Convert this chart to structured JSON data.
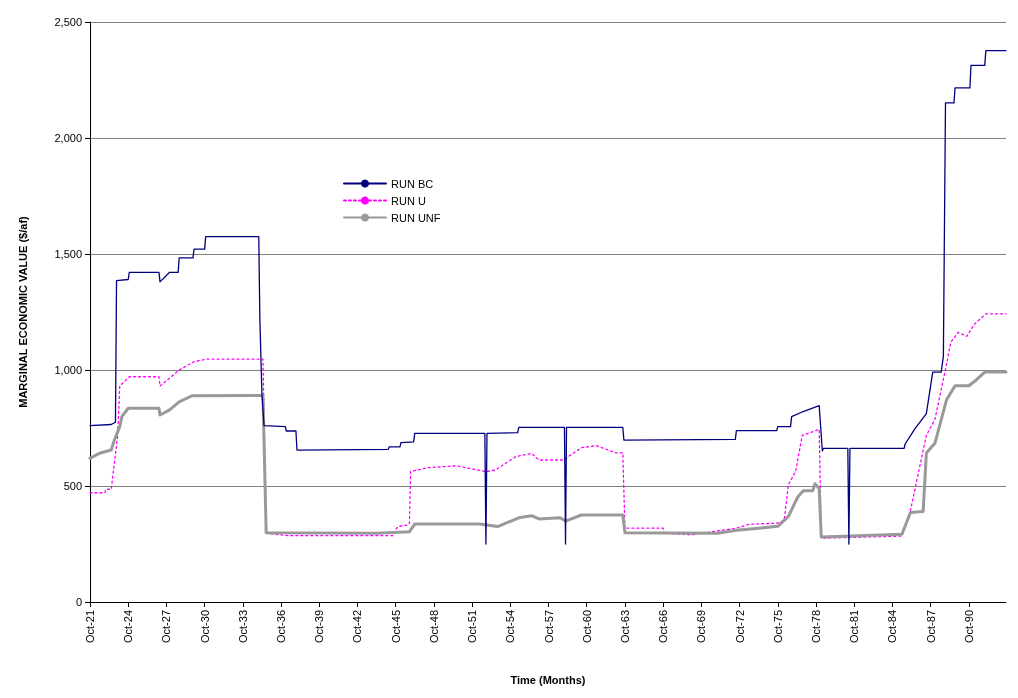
{
  "chart_data": {
    "type": "line",
    "xlabel": "Time (Months)",
    "ylabel": "MARGINAL ECONOMIC VALUE ($/af)",
    "xlim": [
      "1921-10",
      "1993-09"
    ],
    "xticks": [
      {
        "value": "1921-10",
        "label": "Oct-21"
      },
      {
        "value": "1924-10",
        "label": "Oct-24"
      },
      {
        "value": "1927-10",
        "label": "Oct-27"
      },
      {
        "value": "1930-10",
        "label": "Oct-30"
      },
      {
        "value": "1933-10",
        "label": "Oct-33"
      },
      {
        "value": "1936-10",
        "label": "Oct-36"
      },
      {
        "value": "1939-10",
        "label": "Oct-39"
      },
      {
        "value": "1942-10",
        "label": "Oct-42"
      },
      {
        "value": "1945-10",
        "label": "Oct-45"
      },
      {
        "value": "1948-10",
        "label": "Oct-48"
      },
      {
        "value": "1951-10",
        "label": "Oct-51"
      },
      {
        "value": "1954-10",
        "label": "Oct-54"
      },
      {
        "value": "1957-10",
        "label": "Oct-57"
      },
      {
        "value": "1960-10",
        "label": "Oct-60"
      },
      {
        "value": "1963-10",
        "label": "Oct-63"
      },
      {
        "value": "1966-10",
        "label": "Oct-66"
      },
      {
        "value": "1969-10",
        "label": "Oct-69"
      },
      {
        "value": "1972-10",
        "label": "Oct-72"
      },
      {
        "value": "1975-10",
        "label": "Oct-75"
      },
      {
        "value": "1978-10",
        "label": "Oct-78"
      },
      {
        "value": "1981-10",
        "label": "Oct-81"
      },
      {
        "value": "1984-10",
        "label": "Oct-84"
      },
      {
        "value": "1987-10",
        "label": "Oct-87"
      },
      {
        "value": "1990-10",
        "label": "Oct-90"
      }
    ],
    "ylim": [
      0,
      2500
    ],
    "yticks": [
      0,
      500,
      {
        "value": 1000,
        "label": "1,000"
      },
      {
        "value": 1500,
        "label": "1,500"
      },
      {
        "value": 2000,
        "label": "2,000"
      },
      {
        "value": 2500,
        "label": "2,500"
      }
    ],
    "grid": "y",
    "legend": "top left",
    "marker": "none",
    "series": [
      {
        "name": "RUN BC",
        "color": "#000080",
        "line_style": "solid",
        "x": [
          "1921-10",
          "1923-06",
          "1923-10",
          "1923-11",
          "1924-10",
          "1924-11",
          "1927-03",
          "1927-04",
          "1928-01",
          "1928-09",
          "1928-10",
          "1929-11",
          "1929-12",
          "1930-10",
          "1930-11",
          "1935-01",
          "1935-02",
          "1935-04",
          "1935-06",
          "1937-02",
          "1937-03",
          "1937-12",
          "1938-01",
          "1945-03",
          "1945-04",
          "1946-02",
          "1946-03",
          "1947-03",
          "1947-04",
          "1952-10",
          "1952-11",
          "1952-12",
          "1955-05",
          "1955-06",
          "1959-01",
          "1959-02",
          "1959-03",
          "1963-08",
          "1963-09",
          "1972-06",
          "1972-07",
          "1975-09",
          "1975-10",
          "1976-10",
          "1976-11",
          "1977-10",
          "1979-01",
          "1979-04",
          "1979-05",
          "1981-04",
          "1981-05",
          "1981-06",
          "1985-09",
          "1985-10",
          "1986-07",
          "1987-06",
          "1987-12",
          "1988-08",
          "1988-10",
          "1988-12",
          "1989-08",
          "1989-09",
          "1990-11",
          "1990-12",
          "1992-01",
          "1992-02",
          "1993-09"
        ],
        "values": [
          760,
          765,
          775,
          1385,
          1390,
          1421,
          1421,
          1380,
          1421,
          1421,
          1483,
          1483,
          1521,
          1521,
          1575,
          1575,
          1220,
          900,
          760,
          756,
          737,
          737,
          655,
          658,
          669,
          669,
          687,
          690,
          727,
          727,
          250,
          727,
          730,
          753,
          753,
          250,
          753,
          753,
          698,
          701,
          739,
          739,
          756,
          756,
          799,
          821,
          846,
          651,
          662,
          662,
          250,
          662,
          662,
          681,
          745,
          812,
          991,
          991,
          1060,
          2151,
          2151,
          2216,
          2216,
          2313,
          2313,
          2377,
          2377
        ]
      },
      {
        "name": "RUN U",
        "color": "#ff00ff",
        "line_style": "dotted",
        "x": [
          "1921-10",
          "1922-12",
          "1923-01",
          "1923-06",
          "1923-12",
          "1924-02",
          "1924-11",
          "1927-03",
          "1927-04",
          "1928-01",
          "1928-10",
          "1929-12",
          "1930-12",
          "1935-05",
          "1935-08",
          "1937-05",
          "1945-08",
          "1945-09",
          "1945-12",
          "1946-09",
          "1946-11",
          "1946-12",
          "1948-04",
          "1950-07",
          "1952-11",
          "1953-08",
          "1955-03",
          "1956-06",
          "1957-01",
          "1958-12",
          "1960-05",
          "1961-07",
          "1963-01",
          "1963-08",
          "1963-10",
          "1966-10",
          "1966-11",
          "1969-01",
          "1972-07",
          "1973-07",
          "1975-10",
          "1976-04",
          "1976-08",
          "1977-03",
          "1977-09",
          "1979-01",
          "1979-03",
          "1985-07",
          "1986-03",
          "1987-06",
          "1988-02",
          "1989-01",
          "1989-05",
          "1989-12",
          "1990-08",
          "1991-03",
          "1992-02",
          "1993-09"
        ],
        "values": [
          471,
          471,
          486,
          486,
          712,
          931,
          971,
          971,
          931,
          965,
          1000,
          1036,
          1047,
          1047,
          296,
          286,
          286,
          306,
          325,
          332,
          340,
          562,
          579,
          587,
          562,
          569,
          626,
          641,
          612,
          612,
          665,
          674,
          643,
          643,
          318,
          318,
          296,
          290,
          318,
          335,
          340,
          352,
          505,
          565,
          718,
          744,
          275,
          284,
          394,
          718,
          787,
          1026,
          1119,
          1162,
          1145,
          1196,
          1242,
          1242
        ]
      },
      {
        "name": "RUN UNF",
        "color": "#999999",
        "line_style": "solid",
        "x": [
          "1921-10",
          "1922-07",
          "1923-06",
          "1923-09",
          "1924-02",
          "1924-04",
          "1924-10",
          "1927-03",
          "1927-04",
          "1928-01",
          "1928-10",
          "1929-10",
          "1935-05",
          "1935-08",
          "1944-05",
          "1946-11",
          "1947-04",
          "1952-05",
          "1953-10",
          "1955-06",
          "1956-06",
          "1957-01",
          "1958-09",
          "1959-02",
          "1960-05",
          "1963-08",
          "1963-10",
          "1971-01",
          "1972-07",
          "1975-10",
          "1976-08",
          "1977-05",
          "1977-10",
          "1978-07",
          "1978-09",
          "1979-01",
          "1979-03",
          "1985-07",
          "1986-03",
          "1987-03",
          "1987-06",
          "1988-02",
          "1988-06",
          "1989-01",
          "1989-09",
          "1990-10",
          "1991-05",
          "1992-01",
          "1993-09"
        ],
        "values": [
          619,
          641,
          655,
          698,
          756,
          799,
          835,
          835,
          806,
          828,
          863,
          889,
          890,
          299,
          296,
          303,
          336,
          336,
          325,
          363,
          372,
          358,
          363,
          349,
          375,
          375,
          299,
          296,
          309,
          326,
          369,
          454,
          480,
          480,
          510,
          488,
          280,
          292,
          386,
          390,
          642,
          684,
          752,
          872,
          932,
          932,
          957,
          991,
          991
        ]
      }
    ]
  }
}
